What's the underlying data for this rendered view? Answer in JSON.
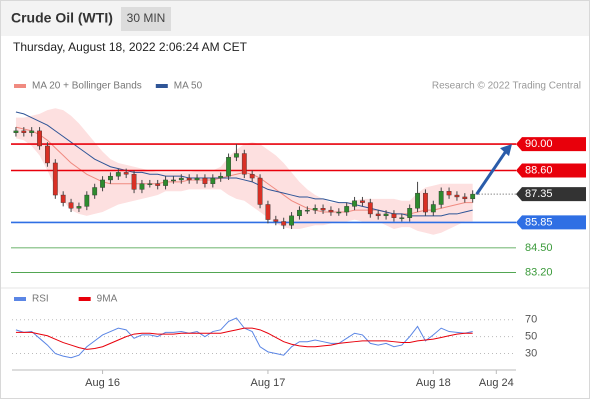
{
  "chart_data": {
    "type": "candlestick",
    "title": "Crude Oil (WTI)",
    "timeframe": "30 MIN",
    "timestamp": "Thursday, August 18, 2022 2:06:24 AM CET",
    "copyright": "Research © 2022 Trading Central",
    "categories": [
      null,
      null,
      null,
      null,
      null,
      null,
      null,
      null,
      null,
      null,
      null,
      "Aug 16",
      null,
      null,
      null,
      null,
      null,
      null,
      null,
      null,
      null,
      null,
      null,
      null,
      null,
      null,
      null,
      null,
      null,
      null,
      null,
      null,
      "Aug 17",
      null,
      null,
      null,
      null,
      null,
      null,
      null,
      null,
      null,
      null,
      null,
      null,
      null,
      null,
      null,
      null,
      null,
      null,
      null,
      null,
      "Aug 18",
      null,
      null,
      null,
      null,
      null,
      null,
      null,
      "Aug 24",
      null,
      null
    ],
    "open": [
      90.6,
      90.7,
      90.6,
      90.7,
      89.9,
      89.0,
      87.3,
      86.9,
      86.6,
      86.7,
      87.3,
      87.7,
      88.1,
      88.3,
      88.5,
      88.4,
      87.6,
      87.9,
      87.9,
      87.8,
      88.1,
      88.1,
      88.2,
      88.1,
      88.2,
      87.9,
      88.2,
      88.3,
      89.3,
      89.5,
      88.4,
      88.2,
      86.8,
      86.0,
      85.9,
      85.7,
      86.2,
      86.5,
      86.5,
      86.6,
      86.5,
      86.4,
      86.4,
      86.7,
      87.0,
      86.9,
      86.3,
      86.2,
      86.3,
      86.1,
      86.1,
      86.6,
      87.4,
      86.4,
      86.8,
      87.5,
      87.3,
      87.2,
      87.1,
      null,
      null,
      null,
      null,
      null
    ],
    "high": [
      90.9,
      90.9,
      90.9,
      90.9,
      90.1,
      89.2,
      87.5,
      87.1,
      86.9,
      87.5,
      87.9,
      88.3,
      88.5,
      88.7,
      88.7,
      88.6,
      88.1,
      88.1,
      88.1,
      88.3,
      88.3,
      88.4,
      88.4,
      88.4,
      88.4,
      88.4,
      88.5,
      89.5,
      90.0,
      89.7,
      88.6,
      88.4,
      87.0,
      86.2,
      86.1,
      86.4,
      86.7,
      86.7,
      86.8,
      86.8,
      86.7,
      86.6,
      86.9,
      87.2,
      87.2,
      87.1,
      86.5,
      86.5,
      86.5,
      86.3,
      86.8,
      88.0,
      87.6,
      87.0,
      87.7,
      87.7,
      87.5,
      87.4,
      87.55,
      null,
      null,
      null,
      null,
      null
    ],
    "low": [
      90.4,
      90.4,
      90.4,
      89.7,
      88.8,
      87.1,
      86.7,
      86.4,
      86.4,
      86.5,
      87.1,
      87.5,
      87.9,
      88.1,
      88.2,
      87.4,
      87.4,
      87.7,
      87.6,
      87.6,
      87.9,
      87.9,
      87.9,
      87.9,
      87.7,
      87.7,
      88.0,
      88.1,
      89.1,
      88.2,
      88.0,
      86.6,
      85.8,
      85.7,
      85.5,
      85.5,
      86.0,
      86.3,
      86.3,
      86.3,
      86.2,
      86.2,
      86.2,
      86.5,
      86.7,
      86.1,
      86.0,
      86.0,
      85.9,
      85.9,
      85.9,
      86.4,
      86.2,
      86.2,
      86.6,
      87.1,
      87.0,
      86.9,
      86.9,
      null,
      null,
      null,
      null,
      null
    ],
    "close": [
      90.7,
      90.6,
      90.7,
      89.9,
      89.0,
      87.3,
      86.9,
      86.6,
      86.7,
      87.3,
      87.7,
      88.1,
      88.3,
      88.5,
      88.4,
      87.6,
      87.9,
      87.9,
      87.8,
      88.1,
      88.1,
      88.2,
      88.1,
      88.2,
      87.9,
      88.2,
      88.3,
      89.3,
      89.5,
      88.4,
      88.2,
      86.8,
      86.0,
      85.9,
      85.7,
      86.2,
      86.5,
      86.5,
      86.6,
      86.5,
      86.4,
      86.4,
      86.7,
      87.0,
      86.9,
      86.3,
      86.2,
      86.3,
      86.1,
      86.1,
      86.6,
      87.4,
      86.4,
      86.8,
      87.5,
      87.3,
      87.2,
      87.1,
      87.35,
      null,
      null,
      null,
      null,
      null
    ],
    "up_color": "#2e8b2e",
    "down_color": "#d93025",
    "ylim": [
      82.8,
      92.6
    ],
    "series": [
      {
        "name": "MA 20 + Bollinger Bands",
        "color": "#f08a80",
        "band_color": "#fde0e0",
        "values": [
          90.9,
          90.8,
          90.7,
          90.5,
          90.2,
          89.8,
          89.4,
          89.0,
          88.7,
          88.4,
          88.2,
          88.0,
          87.9,
          87.9,
          87.9,
          87.9,
          87.9,
          87.9,
          87.9,
          88.0,
          88.0,
          88.0,
          88.1,
          88.1,
          88.1,
          88.1,
          88.2,
          88.3,
          88.4,
          88.5,
          88.4,
          88.2,
          87.9,
          87.6,
          87.3,
          87.0,
          86.8,
          86.6,
          86.5,
          86.4,
          86.4,
          86.4,
          86.4,
          86.5,
          86.5,
          86.5,
          86.5,
          86.4,
          86.3,
          86.3,
          86.3,
          86.4,
          86.5,
          86.5,
          86.6,
          86.7,
          86.8,
          86.9,
          86.9,
          null,
          null,
          null,
          null,
          null
        ],
        "upper": [
          91.4,
          91.4,
          91.5,
          91.6,
          91.8,
          91.9,
          91.8,
          91.5,
          91.1,
          90.6,
          90.1,
          89.6,
          89.2,
          89.0,
          88.9,
          88.8,
          88.7,
          88.6,
          88.5,
          88.5,
          88.5,
          88.5,
          88.5,
          88.6,
          88.6,
          88.6,
          88.8,
          89.3,
          89.7,
          90.0,
          90.1,
          90.0,
          89.7,
          89.4,
          89.0,
          88.5,
          88.0,
          87.6,
          87.3,
          87.1,
          86.9,
          86.9,
          86.9,
          87.0,
          87.1,
          87.1,
          87.1,
          87.1,
          87.1,
          87.0,
          87.0,
          87.4,
          87.7,
          87.8,
          87.9,
          87.9,
          87.9,
          87.9,
          87.9,
          null,
          null,
          null,
          null,
          null
        ],
        "lower": [
          90.3,
          90.2,
          89.9,
          89.4,
          88.6,
          87.7,
          87.0,
          86.5,
          86.3,
          86.2,
          86.3,
          86.4,
          86.6,
          86.8,
          86.9,
          87.0,
          87.1,
          87.2,
          87.3,
          87.5,
          87.5,
          87.5,
          87.6,
          87.6,
          87.6,
          87.6,
          87.6,
          87.3,
          87.1,
          87.0,
          86.7,
          86.4,
          86.1,
          85.8,
          85.6,
          85.5,
          85.5,
          85.6,
          85.7,
          85.7,
          85.8,
          85.9,
          85.9,
          86.0,
          85.9,
          85.9,
          85.9,
          85.7,
          85.5,
          85.6,
          85.6,
          85.4,
          85.3,
          85.2,
          85.3,
          85.5,
          85.7,
          85.9,
          85.9,
          null,
          null,
          null,
          null,
          null
        ]
      },
      {
        "name": "MA 50",
        "color": "#2f5597",
        "values": [
          91.7,
          91.6,
          91.4,
          91.2,
          91.0,
          90.7,
          90.4,
          90.1,
          89.8,
          89.5,
          89.2,
          89.0,
          88.8,
          88.7,
          88.6,
          88.5,
          88.5,
          88.4,
          88.4,
          88.3,
          88.3,
          88.3,
          88.2,
          88.2,
          88.2,
          88.2,
          88.2,
          88.2,
          88.2,
          88.1,
          88.0,
          87.8,
          87.6,
          87.5,
          87.4,
          87.3,
          87.2,
          87.2,
          87.1,
          87.1,
          87.0,
          86.9,
          86.9,
          86.8,
          86.7,
          86.6,
          86.5,
          86.4,
          86.3,
          86.3,
          86.2,
          86.2,
          86.2,
          86.2,
          86.2,
          86.3,
          86.3,
          86.4,
          86.5,
          null,
          null,
          null,
          null,
          null
        ]
      }
    ],
    "levels": [
      {
        "value": 90,
        "label": "90.00",
        "color": "#e8000b",
        "style": "box"
      },
      {
        "value": 88.6,
        "label": "88.60",
        "color": "#e8000b",
        "style": "box"
      },
      {
        "value": 87.35,
        "label": "87.35",
        "color": "#333333",
        "style": "current"
      },
      {
        "value": 85.85,
        "label": "85.85",
        "color": "#2f6fe4",
        "style": "box"
      },
      {
        "value": 84.5,
        "label": "84.50",
        "color": "#3a9a3a",
        "style": "text"
      },
      {
        "value": 83.2,
        "label": "83.20",
        "color": "#3a9a3a",
        "style": "text"
      }
    ],
    "arrow_color": "#2a5caa",
    "rsi": {
      "ylim": [
        20,
        85
      ],
      "yticks": [
        70,
        50,
        30
      ],
      "series": [
        {
          "name": "RSI",
          "color": "#5b86e5",
          "values": [
            58,
            55,
            56,
            48,
            40,
            30,
            27,
            25,
            28,
            38,
            45,
            52,
            56,
            60,
            58,
            48,
            52,
            52,
            50,
            55,
            55,
            56,
            54,
            56,
            50,
            56,
            58,
            68,
            72,
            60,
            56,
            38,
            32,
            30,
            28,
            38,
            44,
            44,
            46,
            44,
            42,
            42,
            48,
            54,
            52,
            42,
            40,
            42,
            38,
            40,
            50,
            62,
            45,
            52,
            60,
            56,
            55,
            54,
            56,
            null,
            null,
            null,
            null,
            null
          ]
        },
        {
          "name": "9MA",
          "color": "#e8000b",
          "values": [
            55,
            55,
            55,
            53,
            51,
            47,
            43,
            40,
            37,
            35,
            36,
            38,
            42,
            46,
            50,
            53,
            54,
            54,
            53,
            53,
            53,
            54,
            54,
            54,
            54,
            54,
            54,
            56,
            58,
            60,
            60,
            58,
            54,
            49,
            44,
            41,
            39,
            38,
            38,
            39,
            40,
            42,
            43,
            44,
            45,
            45,
            45,
            45,
            44,
            43,
            43,
            45,
            46,
            47,
            49,
            51,
            53,
            54,
            54,
            null,
            null,
            null,
            null,
            null
          ]
        }
      ]
    }
  }
}
